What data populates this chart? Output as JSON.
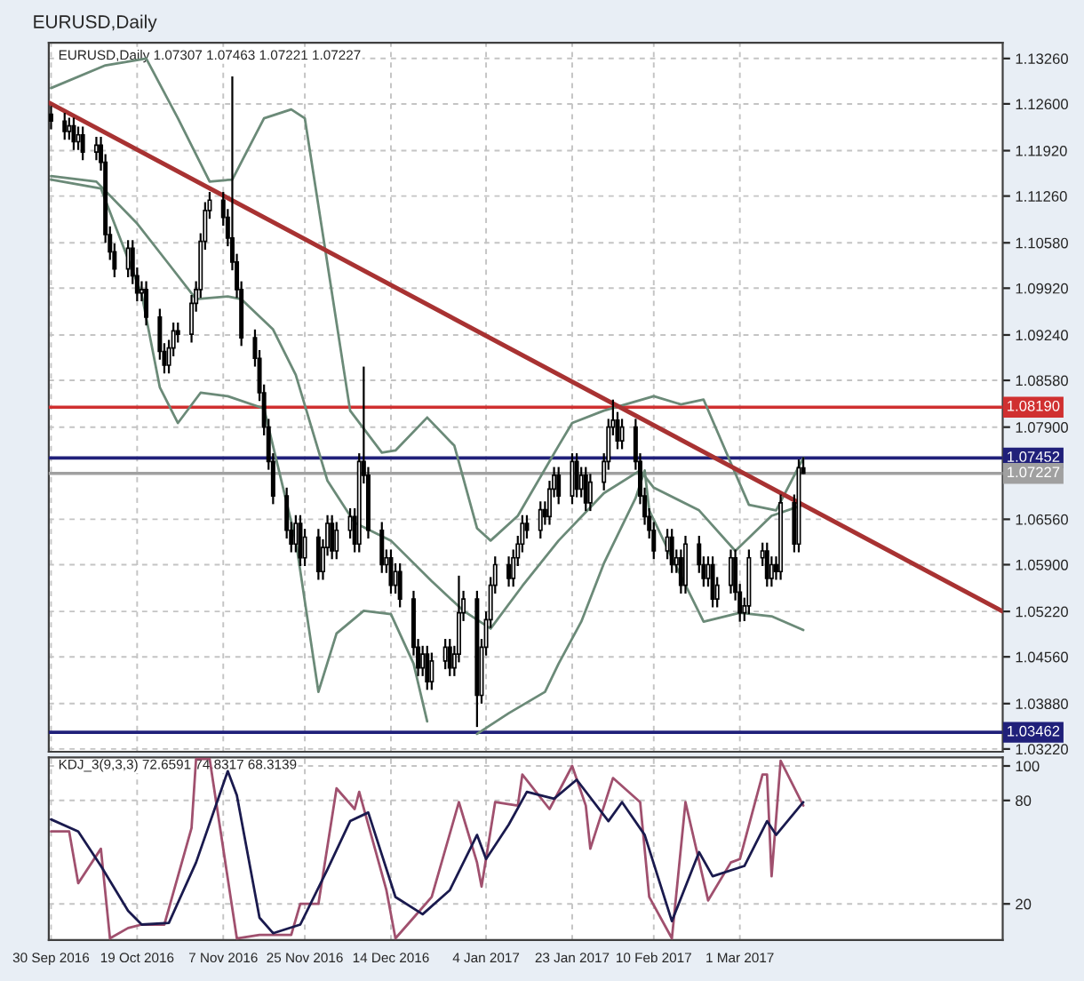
{
  "chart_data": [
    {
      "type": "candlestick",
      "title": "EURUSD,Daily",
      "annotations": [
        "EURUSD,Daily 1.07307 1.07463 1.07221 1.07227"
      ],
      "x": [
        "2016-09-30",
        "2016-10-03",
        "2016-10-04",
        "2016-10-05",
        "2016-10-06",
        "2016-10-07",
        "2016-10-10",
        "2016-10-11",
        "2016-10-12",
        "2016-10-13",
        "2016-10-14",
        "2016-10-17",
        "2016-10-18",
        "2016-10-19",
        "2016-10-20",
        "2016-10-21",
        "2016-10-24",
        "2016-10-25",
        "2016-10-26",
        "2016-10-27",
        "2016-10-28",
        "2016-10-31",
        "2016-11-01",
        "2016-11-02",
        "2016-11-03",
        "2016-11-04",
        "2016-11-07",
        "2016-11-08",
        "2016-11-09",
        "2016-11-10",
        "2016-11-11",
        "2016-11-14",
        "2016-11-15",
        "2016-11-16",
        "2016-11-17",
        "2016-11-18",
        "2016-11-21",
        "2016-11-22",
        "2016-11-23",
        "2016-11-24",
        "2016-11-25",
        "2016-11-28",
        "2016-11-29",
        "2016-11-30",
        "2016-12-01",
        "2016-12-02",
        "2016-12-05",
        "2016-12-06",
        "2016-12-07",
        "2016-12-08",
        "2016-12-09",
        "2016-12-12",
        "2016-12-13",
        "2016-12-14",
        "2016-12-15",
        "2016-12-16",
        "2016-12-19",
        "2016-12-20",
        "2016-12-21",
        "2016-12-22",
        "2016-12-23",
        "2016-12-26",
        "2016-12-27",
        "2016-12-28",
        "2016-12-29",
        "2016-12-30",
        "2017-01-02",
        "2017-01-03",
        "2017-01-04",
        "2017-01-05",
        "2017-01-06",
        "2017-01-09",
        "2017-01-10",
        "2017-01-11",
        "2017-01-12",
        "2017-01-13",
        "2017-01-16",
        "2017-01-17",
        "2017-01-18",
        "2017-01-19",
        "2017-01-20",
        "2017-01-23",
        "2017-01-24",
        "2017-01-25",
        "2017-01-26",
        "2017-01-27",
        "2017-01-30",
        "2017-01-31",
        "2017-02-01",
        "2017-02-02",
        "2017-02-03",
        "2017-02-06",
        "2017-02-07",
        "2017-02-08",
        "2017-02-09",
        "2017-02-10",
        "2017-02-13",
        "2017-02-14",
        "2017-02-15",
        "2017-02-16",
        "2017-02-17",
        "2017-02-20",
        "2017-02-21",
        "2017-02-22",
        "2017-02-23",
        "2017-02-24",
        "2017-02-27",
        "2017-02-28",
        "2017-03-01",
        "2017-03-02",
        "2017-03-03",
        "2017-03-06",
        "2017-03-07",
        "2017-03-08",
        "2017-03-09",
        "2017-03-10",
        "2017-03-13",
        "2017-03-14",
        "2017-03-15"
      ],
      "ohlc": [
        [
          1.1245,
          1.1257,
          1.1223,
          1.1235
        ],
        [
          1.1235,
          1.1247,
          1.1208,
          1.122
        ],
        [
          1.122,
          1.124,
          1.1208,
          1.1228
        ],
        [
          1.1228,
          1.124,
          1.1193,
          1.1205
        ],
        [
          1.1205,
          1.1227,
          1.1193,
          1.1215
        ],
        [
          1.1215,
          1.1227,
          1.1178,
          1.119
        ],
        [
          1.119,
          1.1212,
          1.1178,
          1.12
        ],
        [
          1.12,
          1.1212,
          1.1163,
          1.1175
        ],
        [
          1.1175,
          1.1187,
          1.1058,
          1.107
        ],
        [
          1.107,
          1.1082,
          1.1033,
          1.1045
        ],
        [
          1.1045,
          1.1057,
          1.1008,
          1.102
        ],
        [
          1.102,
          1.1062,
          1.1008,
          1.105
        ],
        [
          1.105,
          1.1062,
          1.0998,
          1.101
        ],
        [
          1.101,
          1.1022,
          1.0973,
          1.0985
        ],
        [
          1.0985,
          1.1002,
          1.0973,
          1.099
        ],
        [
          1.099,
          1.1002,
          1.0938,
          1.095
        ],
        [
          1.095,
          1.0962,
          1.0888,
          1.09
        ],
        [
          1.09,
          1.0912,
          1.0868,
          1.088
        ],
        [
          1.088,
          1.0917,
          1.0868,
          1.0905
        ],
        [
          1.0905,
          1.0942,
          1.0893,
          1.093
        ],
        [
          1.093,
          1.0942,
          1.0913,
          1.0925
        ],
        [
          1.0925,
          1.0982,
          1.0913,
          1.097
        ],
        [
          1.097,
          1.1002,
          1.0958,
          1.099
        ],
        [
          1.099,
          1.1072,
          1.0978,
          1.106
        ],
        [
          1.106,
          1.1117,
          1.1048,
          1.1105
        ],
        [
          1.1105,
          1.1132,
          1.1093,
          1.112
        ],
        [
          1.112,
          1.1132,
          1.1083,
          1.1095
        ],
        [
          1.1095,
          1.1107,
          1.1053,
          1.1065
        ],
        [
          1.1065,
          1.13,
          1.1018,
          1.103
        ],
        [
          1.103,
          1.1042,
          1.0978,
          1.099
        ],
        [
          1.099,
          1.1002,
          1.0908,
          1.092
        ],
        [
          1.092,
          1.0932,
          1.0878,
          1.089
        ],
        [
          1.089,
          1.0902,
          1.0828,
          1.084
        ],
        [
          1.084,
          1.0852,
          1.0778,
          1.079
        ],
        [
          1.079,
          1.0802,
          1.0728,
          1.074
        ],
        [
          1.074,
          1.0752,
          1.0678,
          1.069
        ],
        [
          1.069,
          1.0702,
          1.0628,
          1.064
        ],
        [
          1.064,
          1.0652,
          1.0608,
          1.062
        ],
        [
          1.062,
          1.0662,
          1.0608,
          1.065
        ],
        [
          1.065,
          1.0662,
          1.0588,
          1.06
        ],
        [
          1.06,
          1.0642,
          1.0588,
          1.063
        ],
        [
          1.063,
          1.0642,
          1.0568,
          1.058
        ],
        [
          1.058,
          1.0627,
          1.0568,
          1.0615
        ],
        [
          1.0615,
          1.0662,
          1.0603,
          1.065
        ],
        [
          1.065,
          1.0662,
          1.0598,
          1.061
        ],
        [
          1.061,
          1.0652,
          1.0598,
          1.064
        ],
        [
          1.064,
          1.0672,
          1.0628,
          1.066
        ],
        [
          1.066,
          1.0672,
          1.0608,
          1.062
        ],
        [
          1.062,
          1.0752,
          1.0608,
          1.074
        ],
        [
          1.074,
          1.0878,
          1.0708,
          1.072
        ],
        [
          1.072,
          1.0732,
          1.0628,
          1.064
        ],
        [
          1.064,
          1.0652,
          1.0578,
          1.059
        ],
        [
          1.059,
          1.0612,
          1.0578,
          1.06
        ],
        [
          1.06,
          1.0612,
          1.0548,
          1.056
        ],
        [
          1.056,
          1.0592,
          1.0548,
          1.058
        ],
        [
          1.058,
          1.0592,
          1.0528,
          1.054
        ],
        [
          1.054,
          1.0552,
          1.0458,
          1.047
        ],
        [
          1.047,
          1.0482,
          1.0428,
          1.044
        ],
        [
          1.044,
          1.0472,
          1.0428,
          1.046
        ],
        [
          1.046,
          1.0472,
          1.0408,
          1.042
        ],
        [
          1.042,
          1.0462,
          1.0408,
          1.045
        ],
        [
          1.045,
          1.0482,
          1.0438,
          1.047
        ],
        [
          1.047,
          1.0482,
          1.0428,
          1.044
        ],
        [
          1.044,
          1.0472,
          1.0428,
          1.046
        ],
        [
          1.046,
          1.0574,
          1.0448,
          1.052
        ],
        [
          1.052,
          1.0552,
          1.0508,
          1.054
        ],
        [
          1.054,
          1.0552,
          1.0354,
          1.04
        ],
        [
          1.04,
          1.0482,
          1.0388,
          1.047
        ],
        [
          1.047,
          1.0522,
          1.0458,
          1.051
        ],
        [
          1.051,
          1.0572,
          1.0498,
          1.056
        ],
        [
          1.056,
          1.0602,
          1.0548,
          1.059
        ],
        [
          1.059,
          1.0602,
          1.0558,
          1.057
        ],
        [
          1.057,
          1.0612,
          1.0558,
          1.06
        ],
        [
          1.06,
          1.0632,
          1.0588,
          1.062
        ],
        [
          1.062,
          1.0662,
          1.0608,
          1.065
        ],
        [
          1.065,
          1.0662,
          1.0628,
          1.064
        ],
        [
          1.064,
          1.0682,
          1.0628,
          1.067
        ],
        [
          1.067,
          1.0682,
          1.0648,
          1.066
        ],
        [
          1.066,
          1.0712,
          1.0648,
          1.07
        ],
        [
          1.07,
          1.0732,
          1.0688,
          1.072
        ],
        [
          1.072,
          1.0732,
          1.0678,
          1.069
        ],
        [
          1.069,
          1.0752,
          1.0678,
          1.074
        ],
        [
          1.074,
          1.0752,
          1.0688,
          1.07
        ],
        [
          1.07,
          1.0732,
          1.0688,
          1.072
        ],
        [
          1.072,
          1.0732,
          1.0668,
          1.068
        ],
        [
          1.068,
          1.0722,
          1.0668,
          1.071
        ],
        [
          1.071,
          1.0752,
          1.0698,
          1.074
        ],
        [
          1.074,
          1.0802,
          1.0728,
          1.079
        ],
        [
          1.079,
          1.083,
          1.0778,
          1.08
        ],
        [
          1.08,
          1.0812,
          1.0758,
          1.077
        ],
        [
          1.077,
          1.0802,
          1.0758,
          1.079
        ],
        [
          1.079,
          1.0802,
          1.0728,
          1.074
        ],
        [
          1.074,
          1.0752,
          1.0678,
          1.069
        ],
        [
          1.069,
          1.0702,
          1.0648,
          1.066
        ],
        [
          1.066,
          1.0672,
          1.0628,
          1.064
        ],
        [
          1.064,
          1.0652,
          1.0598,
          1.061
        ],
        [
          1.061,
          1.0642,
          1.0598,
          1.063
        ],
        [
          1.063,
          1.0642,
          1.0578,
          1.059
        ],
        [
          1.059,
          1.0612,
          1.0578,
          1.06
        ],
        [
          1.06,
          1.0612,
          1.0548,
          1.056
        ],
        [
          1.056,
          1.0632,
          1.0548,
          1.062
        ],
        [
          1.062,
          1.0632,
          1.0578,
          1.059
        ],
        [
          1.059,
          1.0602,
          1.0558,
          1.057
        ],
        [
          1.057,
          1.0602,
          1.0558,
          1.059
        ],
        [
          1.059,
          1.0602,
          1.0528,
          1.054
        ],
        [
          1.054,
          1.0572,
          1.0528,
          1.056
        ],
        [
          1.056,
          1.0612,
          1.0548,
          1.06
        ],
        [
          1.06,
          1.0612,
          1.0538,
          1.055
        ],
        [
          1.055,
          1.0562,
          1.0507,
          1.052
        ],
        [
          1.052,
          1.0542,
          1.0508,
          1.053
        ],
        [
          1.053,
          1.0612,
          1.0518,
          1.06
        ],
        [
          1.06,
          1.0622,
          1.0588,
          1.061
        ],
        [
          1.061,
          1.0622,
          1.0558,
          1.057
        ],
        [
          1.057,
          1.0602,
          1.0558,
          1.059
        ],
        [
          1.059,
          1.0602,
          1.0568,
          1.058
        ],
        [
          1.058,
          1.0692,
          1.0568,
          1.068
        ],
        [
          1.068,
          1.0692,
          1.0608,
          1.062
        ],
        [
          1.062,
          1.0743,
          1.0608,
          1.0731
        ],
        [
          1.07307,
          1.07463,
          1.07221,
          1.07227
        ]
      ],
      "color": "#000000",
      "series": [
        {
          "type": "line",
          "color": "#6b8a78",
          "x": [
            "2016-09-30",
            "2016-10-12",
            "2016-10-21",
            "2016-10-28",
            "2016-11-04",
            "2016-11-09",
            "2016-11-16",
            "2016-11-22",
            "2016-11-25",
            "2016-11-30",
            "2016-12-05",
            "2016-12-12",
            "2016-12-15",
            "2016-12-22",
            "2016-12-28",
            "2017-01-02",
            "2017-01-05",
            "2017-01-11",
            "2017-01-20",
            "2017-01-23",
            "2017-01-30",
            "2017-02-10",
            "2017-02-16",
            "2017-02-21",
            "2017-02-27",
            "2017-03-03",
            "2017-03-09",
            "2017-03-15"
          ],
          "values": [
            1.1283,
            1.1316,
            1.1326,
            1.1239,
            1.1147,
            1.115,
            1.1239,
            1.1252,
            1.1239,
            1.1027,
            1.0814,
            1.0753,
            1.0756,
            1.0804,
            1.0763,
            1.0643,
            1.0625,
            1.0661,
            1.0763,
            1.0796,
            1.0814,
            1.0835,
            1.0823,
            1.083,
            1.0738,
            1.0677,
            1.0669,
            1.0745
          ]
        },
        {
          "type": "line",
          "color": "#6b8a78",
          "x": [
            "2016-09-30",
            "2016-10-10",
            "2016-10-19",
            "2016-10-26",
            "2016-11-01",
            "2016-11-08",
            "2016-11-11",
            "2016-11-18",
            "2016-11-23",
            "2016-11-30",
            "2016-12-06",
            "2016-12-14",
            "2016-12-23",
            "2016-12-30",
            "2017-01-05",
            "2017-01-12",
            "2017-01-20",
            "2017-01-30",
            "2017-02-07",
            "2017-02-10",
            "2017-02-20",
            "2017-02-28",
            "2017-03-08",
            "2017-03-15"
          ],
          "values": [
            1.1155,
            1.1147,
            1.1086,
            1.1027,
            1.0976,
            1.098,
            1.0976,
            1.0932,
            1.0866,
            1.0712,
            1.0651,
            1.0625,
            1.0566,
            1.0523,
            1.0497,
            1.0559,
            1.0625,
            1.0694,
            1.0727,
            1.0702,
            1.0669,
            1.061,
            1.0661,
            1.0677
          ]
        },
        {
          "type": "line",
          "color": "#6b8a78",
          "x": [
            "2016-09-30",
            "2016-10-11",
            "2016-10-20",
            "2016-10-24",
            "2016-10-28",
            "2016-11-02",
            "2016-11-08",
            "2016-11-16",
            "2016-11-23",
            "2016-11-28",
            "2016-12-02",
            "2016-12-08",
            "2016-12-14",
            "2016-12-19",
            "2016-12-22",
            "2016-12-28",
            "2017-01-02",
            "2017-01-09",
            "2017-01-17",
            "2017-01-20",
            "2017-01-25",
            "2017-01-30",
            "2017-02-06",
            "2017-02-08",
            "2017-02-09",
            "2017-02-14",
            "2017-02-21",
            "2017-03-01",
            "2017-03-08",
            "2017-03-15"
          ],
          "values": [
            1.115,
            1.1137,
            1.0983,
            1.0848,
            1.0796,
            1.084,
            1.0835,
            1.0817,
            1.0625,
            1.0405,
            1.049,
            1.0523,
            1.0518,
            1.0446,
            1.0362,
            null,
            1.0344,
            1.0374,
            1.0405,
            1.0446,
            1.0507,
            1.0592,
            1.0687,
            1.0727,
            1.0669,
            1.06,
            1.0507,
            1.052,
            1.0515,
            1.0495
          ]
        },
        {
          "type": "line",
          "color": "#a83232",
          "x": [
            "2016-09-29T12:00",
            "2017-04-28"
          ],
          "values": [
            1.1262,
            1.0522
          ]
        }
      ],
      "ref_lines": [
        {
          "axis": "y",
          "value": 1.0819,
          "label": "1.08190",
          "color": "#d03030"
        },
        {
          "axis": "y",
          "value": 1.07452,
          "label": "1.07452",
          "color": "#20207a"
        },
        {
          "axis": "y",
          "value": 1.07227,
          "label": "1.07227",
          "color": "#a0a0a0"
        },
        {
          "axis": "y",
          "value": 1.03462,
          "label": "1.03462",
          "color": "#20207a"
        }
      ],
      "xlim": [
        "2016-09-29T12:00",
        "2017-04-28"
      ],
      "ylim": [
        1.0318,
        1.1349
      ],
      "xticks": [
        {
          "value": "2016-09-30",
          "label": null
        },
        {
          "value": "2016-10-19",
          "label": null
        },
        {
          "value": "2016-11-07",
          "label": null
        },
        {
          "value": "2016-11-25",
          "label": null
        },
        {
          "value": "2016-12-14",
          "label": null
        },
        {
          "value": "2017-01-04",
          "label": null
        },
        {
          "value": "2017-01-23",
          "label": null
        },
        {
          "value": "2017-02-10",
          "label": null
        },
        {
          "value": "2017-03-01",
          "label": null
        }
      ],
      "yticks": [
        {
          "value": 1.1326,
          "label": "1.13260"
        },
        {
          "value": 1.126,
          "label": "1.12600"
        },
        {
          "value": 1.1192,
          "label": "1.11920"
        },
        {
          "value": 1.1126,
          "label": "1.11260"
        },
        {
          "value": 1.1058,
          "label": "1.10580"
        },
        {
          "value": 1.0992,
          "label": "1.09920"
        },
        {
          "value": 1.0924,
          "label": "1.09240"
        },
        {
          "value": 1.0858,
          "label": "1.08580"
        },
        {
          "value": 1.079,
          "label": "1.07900"
        },
        {
          "value": 1.0656,
          "label": "1.06560"
        },
        {
          "value": 1.059,
          "label": "1.05900"
        },
        {
          "value": 1.0522,
          "label": "1.05220"
        },
        {
          "value": 1.0456,
          "label": "1.04560"
        },
        {
          "value": 1.0388,
          "label": "1.03880"
        },
        {
          "value": 1.0322,
          "label": "1.03220"
        }
      ],
      "tick_labels": "y",
      "grid": true,
      "line_style": "solid"
    },
    {
      "type": "line",
      "annotations": [
        "KDJ_3(9,3,3) 72.6591 74.8317 68.3139"
      ],
      "series": [
        {
          "color": "#a0506e",
          "x": [
            "2016-09-30",
            "2016-10-04",
            "2016-10-06",
            "2016-10-11",
            "2016-10-13",
            "2016-10-17",
            "2016-10-20",
            "2016-10-25",
            "2016-10-31",
            "2016-11-01",
            "2016-11-04",
            "2016-11-10",
            "2016-11-15",
            "2016-11-22",
            "2016-11-24",
            "2016-11-28",
            "2016-12-02",
            "2016-12-06",
            "2016-12-07",
            "2016-12-13",
            "2016-12-15",
            "2016-12-19",
            "2016-12-23",
            "2016-12-29",
            "2017-01-02",
            "2017-01-03",
            "2017-01-06",
            "2017-01-11",
            "2017-01-12",
            "2017-01-18",
            "2017-01-23",
            "2017-01-26",
            "2017-01-27",
            "2017-02-01",
            "2017-02-07",
            "2017-02-09",
            "2017-02-14",
            "2017-02-17",
            "2017-02-22",
            "2017-02-27",
            "2017-03-01",
            "2017-03-06",
            "2017-03-07",
            "2017-03-08",
            "2017-03-10",
            "2017-03-15"
          ],
          "values": [
            62,
            62,
            32,
            52,
            0,
            6,
            8,
            8,
            64,
            104,
            104,
            0,
            2,
            2,
            20,
            20,
            87,
            75,
            85,
            28,
            0,
            12,
            24,
            79,
            44,
            30,
            79,
            77,
            95,
            75,
            100,
            77,
            52,
            93,
            79,
            24,
            0,
            79,
            22,
            44,
            46,
            95,
            95,
            36,
            103,
            77
          ]
        },
        {
          "color": "#1a1a4e",
          "x": [
            "2016-09-30",
            "2016-10-06",
            "2016-10-11",
            "2016-10-17",
            "2016-10-20",
            "2016-10-26",
            "2016-11-01",
            "2016-11-08",
            "2016-11-10",
            "2016-11-15",
            "2016-11-18",
            "2016-11-24",
            "2016-11-30",
            "2016-12-05",
            "2016-12-09",
            "2016-12-15",
            "2016-12-21",
            "2016-12-27",
            "2017-01-02",
            "2017-01-04",
            "2017-01-09",
            "2017-01-13",
            "2017-01-19",
            "2017-01-24",
            "2017-01-31",
            "2017-02-03",
            "2017-02-08",
            "2017-02-14",
            "2017-02-20",
            "2017-02-23",
            "2017-03-02",
            "2017-03-07",
            "2017-03-09",
            "2017-03-15"
          ],
          "values": [
            69,
            62,
            42,
            16,
            8,
            9,
            44,
            97,
            83,
            12,
            3,
            8,
            40,
            68,
            73,
            24,
            14,
            28,
            60,
            46,
            66,
            85,
            81,
            92,
            68,
            79,
            60,
            10,
            50,
            36,
            42,
            68,
            60,
            79
          ]
        }
      ],
      "xlim": [
        "2016-09-29T12:00",
        "2017-04-28"
      ],
      "ylim": [
        -1,
        105
      ],
      "xticks": [
        {
          "value": "2016-09-30",
          "label": "30 Sep 2016"
        },
        {
          "value": "2016-10-19",
          "label": "19 Oct 2016"
        },
        {
          "value": "2016-11-07",
          "label": "7 Nov 2016"
        },
        {
          "value": "2016-11-25",
          "label": "25 Nov 2016"
        },
        {
          "value": "2016-12-14",
          "label": "14 Dec 2016"
        },
        {
          "value": "2017-01-04",
          "label": "4 Jan 2017"
        },
        {
          "value": "2017-01-23",
          "label": "23 Jan 2017"
        },
        {
          "value": "2017-02-10",
          "label": "10 Feb 2017"
        },
        {
          "value": "2017-03-01",
          "label": "1 Mar 2017"
        }
      ],
      "yticks": [
        100,
        80,
        20
      ],
      "grid": true,
      "line_style": "solid"
    }
  ]
}
